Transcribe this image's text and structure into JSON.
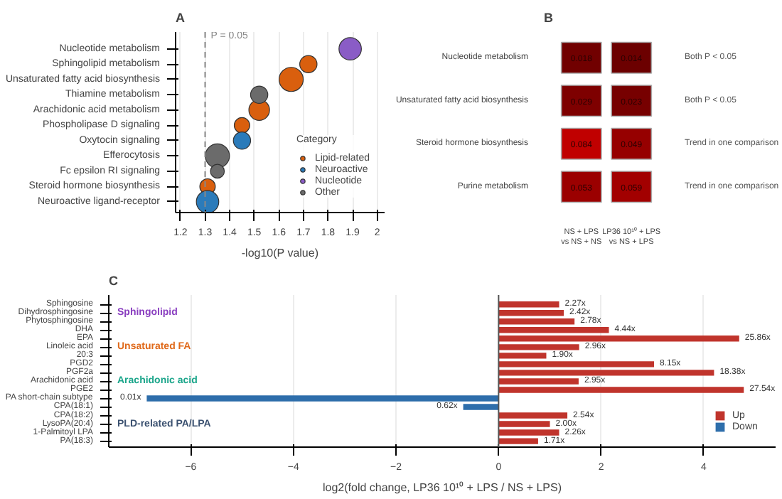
{
  "chart_data": [
    {
      "type": "bubble",
      "title": "A",
      "xlabel": "-log10(P value)",
      "orientation": "horizontal",
      "categories": [
        "Nucleotide metabolism",
        "Sphingolipid metabolism",
        "Unsaturated fatty acid biosynthesis",
        "Thiamine metabolism",
        "Arachidonic acid metabolism",
        "Phospholipase D signaling",
        "Oxytocin signaling",
        "Efferocytosis",
        "Fc epsilon RI signaling",
        "Steroid hormone biosynthesis",
        "Neuroactive ligand-receptor"
      ],
      "series": [
        {
          "name": "Lipid-related",
          "color": "#d95f0e",
          "values": [
            null,
            1.72,
            1.65,
            null,
            1.52,
            1.45,
            null,
            null,
            null,
            1.31,
            null
          ],
          "sizes": [
            null,
            0.51,
            1,
            null,
            0.73,
            0.41,
            null,
            null,
            null,
            0.41,
            null
          ]
        },
        {
          "name": "Neuroactive",
          "color": "#2b7bba",
          "values": [
            null,
            null,
            null,
            null,
            null,
            null,
            1.45,
            null,
            null,
            null,
            1.31
          ],
          "sizes": [
            null,
            null,
            null,
            null,
            null,
            null,
            0.51,
            null,
            null,
            null,
            0.86
          ]
        },
        {
          "name": "Nucleotide",
          "color": "#8a5cc6",
          "values": [
            1.89,
            null,
            null,
            null,
            null,
            null,
            null,
            null,
            null,
            null,
            null
          ],
          "sizes": [
            0.86,
            null,
            null,
            null,
            null,
            null,
            null,
            null,
            null,
            null,
            null
          ]
        },
        {
          "name": "Other",
          "color": "#6b6b6b",
          "values": [
            null,
            null,
            null,
            1.52,
            null,
            null,
            null,
            1.35,
            1.35,
            null,
            null
          ],
          "sizes": [
            null,
            null,
            null,
            0.51,
            null,
            null,
            null,
            1,
            0.33,
            null,
            null
          ]
        }
      ],
      "xlim": [
        1.18,
        2.03
      ],
      "xticks": [
        1.2,
        1.3,
        1.4,
        1.5,
        1.6,
        1.7,
        1.8,
        1.9,
        2.0
      ],
      "ref_lines": [
        {
          "axis": "x",
          "value": 1.3,
          "color": "#888888",
          "line_style": "dashed"
        }
      ],
      "annotations": [
        {
          "text": "P = 0.05",
          "x": 1.3,
          "y": "Nucleotide metabolism"
        }
      ],
      "legend": "bottom right",
      "legend_title": "Category",
      "grid": "x"
    },
    {
      "type": "heatmap",
      "title": "B",
      "categories": [
        "NS + LPS\nvs NS + NS",
        "LP36 10¹⁰ + LPS\nvs NS + LPS"
      ],
      "y_categories": [
        "Nucleotide metabolism",
        "Unsaturated fatty acid biosynthesis",
        "Steroid hormone biosynthesis",
        "Purine metabolism"
      ],
      "y2_categories": [
        "Both P < 0.05",
        "Both P < 0.05",
        "Trend in one comparison",
        "Trend in one comparison"
      ],
      "cells": [
        [
          0.018,
          0.014
        ],
        [
          0.029,
          0.023
        ],
        [
          0.084,
          0.049
        ],
        [
          0.053,
          0.059
        ]
      ],
      "cell_labels": [
        [
          "0.018",
          "0.014"
        ],
        [
          "0.029",
          "0.023"
        ],
        [
          "0.084",
          "0.049"
        ],
        [
          "0.053",
          "0.059"
        ]
      ]
    },
    {
      "type": "bar",
      "title": "C",
      "orientation": "horizontal",
      "xlabel": "log2(fold change, LP36 10¹⁰ + LPS / NS + LPS)",
      "categories": [
        "Sphingosine",
        "Dihydrosphingosine",
        "Phytosphingosine",
        "DHA",
        "EPA",
        "Linoleic acid",
        "20:3",
        "PGD2",
        "PGF2a",
        "Arachidonic acid",
        "PGE2",
        "PA short-chain subtype",
        "CPA(18:1)",
        "CPA(18:2)",
        "LysoPA(20:4)",
        "1-Palmitoyl LPA",
        "PA(18:3)"
      ],
      "series": [
        {
          "name": "Up",
          "color": "#c0342c",
          "values": [
            1.18,
            1.27,
            1.48,
            2.15,
            4.69,
            1.57,
            0.93,
            3.03,
            4.2,
            1.56,
            4.78,
            null,
            null,
            1.34,
            1.0,
            1.18,
            0.77
          ]
        },
        {
          "name": "Down",
          "color": "#2e6eab",
          "values": [
            null,
            null,
            null,
            null,
            null,
            null,
            null,
            null,
            null,
            null,
            null,
            -6.86,
            -0.69,
            null,
            null,
            null,
            null
          ]
        }
      ],
      "xlim": [
        -7.6,
        5.4
      ],
      "xticks": [
        -6,
        -4,
        -2,
        0,
        2,
        4
      ],
      "annotations": [
        "Sphingolipid",
        "Unsaturated FA",
        "Arachidonic acid",
        "PLD-related PA/LPA",
        {
          "text": "2.27x",
          "x": 1.18,
          "y": "Sphingosine"
        },
        {
          "text": "2.42x",
          "x": 1.27,
          "y": "Dihydrosphingosine"
        },
        {
          "text": "2.78x",
          "x": 1.48,
          "y": "Phytosphingosine"
        },
        {
          "text": "4.44x",
          "x": 2.15,
          "y": "DHA"
        },
        {
          "text": "25.86x",
          "x": 4.69,
          "y": "EPA"
        },
        {
          "text": "2.96x",
          "x": 1.57,
          "y": "Linoleic acid"
        },
        {
          "text": "1.90x",
          "x": 0.93,
          "y": "20:3"
        },
        {
          "text": "8.15x",
          "x": 3.03,
          "y": "PGD2"
        },
        {
          "text": "18.38x",
          "x": 4.2,
          "y": "PGF2a"
        },
        {
          "text": "2.95x",
          "x": 1.56,
          "y": "Arachidonic acid"
        },
        {
          "text": "27.54x",
          "x": 4.78,
          "y": "PGE2"
        },
        {
          "text": "0.01x",
          "x": -6.86,
          "y": "PA short-chain subtype"
        },
        {
          "text": "0.62x",
          "x": -0.69,
          "y": "CPA(18:1)"
        },
        {
          "text": "2.54x",
          "x": 1.34,
          "y": "CPA(18:2)"
        },
        {
          "text": "2.00x",
          "x": 1.0,
          "y": "LysoPA(20:4)"
        },
        {
          "text": "2.26x",
          "x": 1.18,
          "y": "1-Palmitoyl LPA"
        },
        {
          "text": "1.71x",
          "x": 0.77,
          "y": "PA(18:3)"
        }
      ],
      "legend": "bottom right",
      "grid": "x"
    }
  ]
}
